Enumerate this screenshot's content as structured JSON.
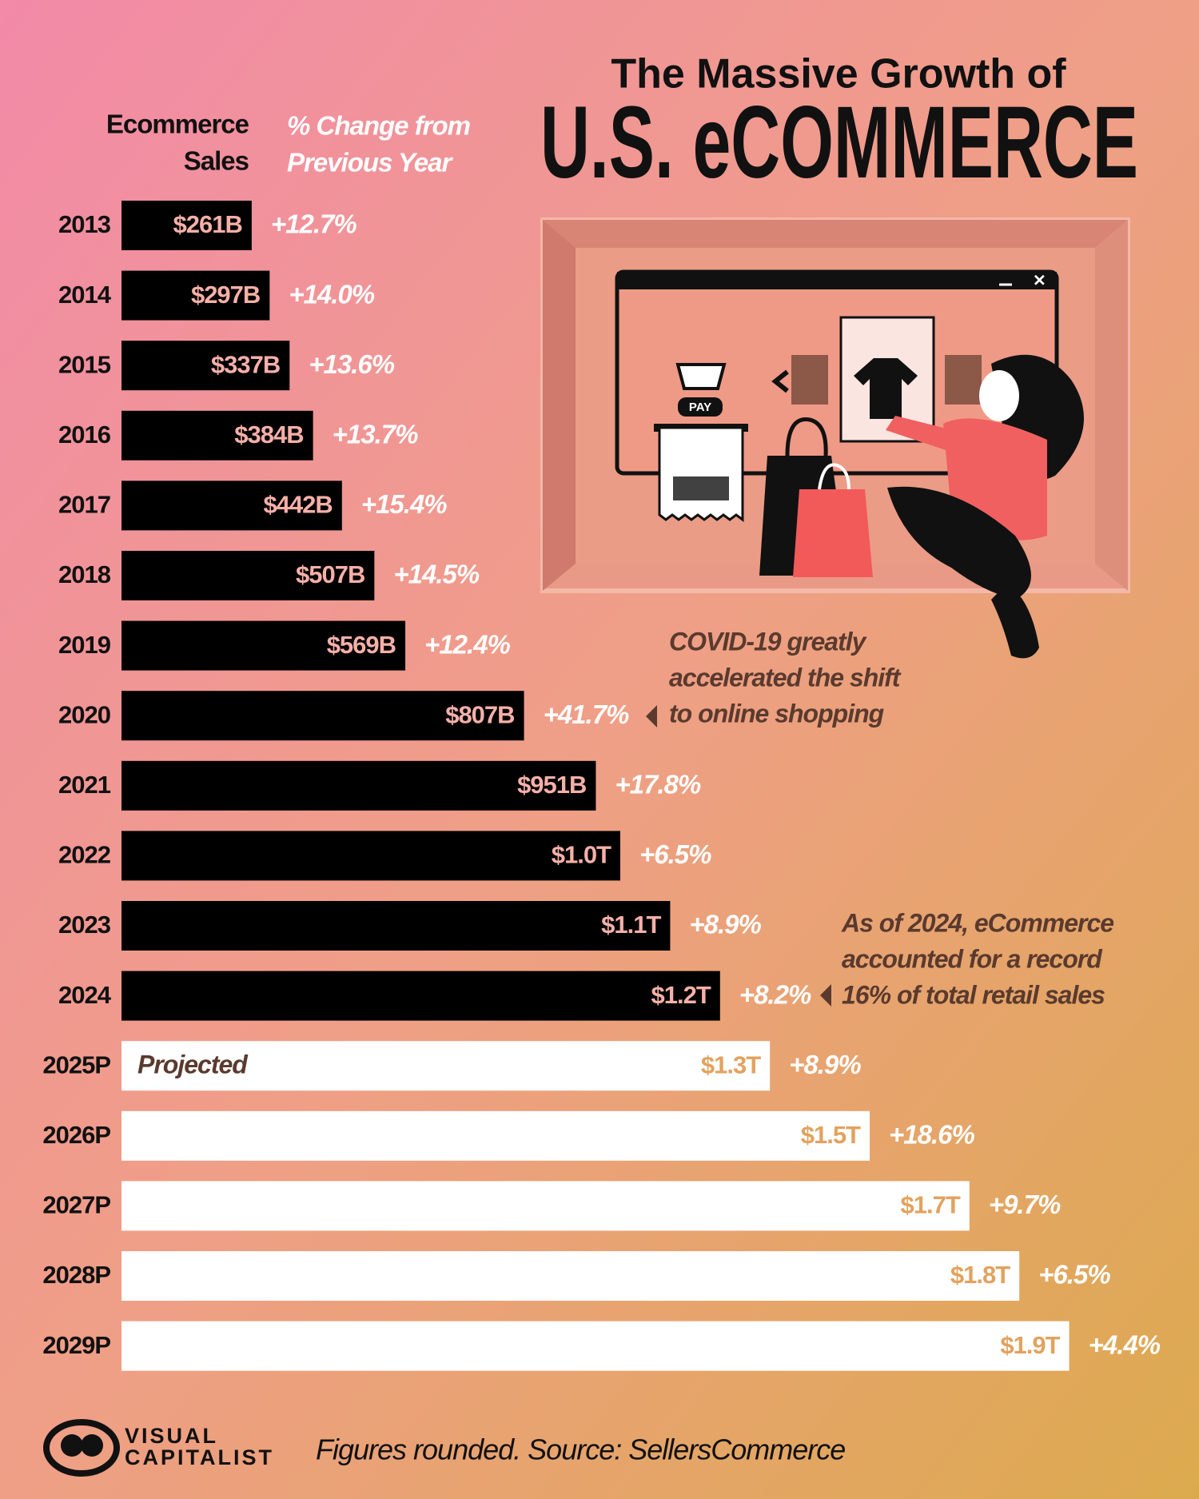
{
  "chart_data": {
    "type": "bar",
    "orientation": "horizontal",
    "title": "The Massive Growth of",
    "subtitle": "U.S. eCOMMERCE",
    "column_headers": {
      "sales": [
        "Ecommerce",
        "Sales"
      ],
      "change": [
        "% Change from",
        "Previous Year"
      ]
    },
    "categories": [
      "2013",
      "2014",
      "2015",
      "2016",
      "2017",
      "2018",
      "2019",
      "2020",
      "2021",
      "2022",
      "2023",
      "2024",
      "2025P",
      "2026P",
      "2027P",
      "2028P",
      "2029P"
    ],
    "values": [
      261,
      297,
      337,
      384,
      442,
      507,
      569,
      807,
      951,
      1000,
      1100,
      1200,
      1300,
      1500,
      1700,
      1800,
      1900
    ],
    "value_labels": [
      "$261B",
      "$297B",
      "$337B",
      "$384B",
      "$442B",
      "$507B",
      "$569B",
      "$807B",
      "$951B",
      "$1.0T",
      "$1.1T",
      "$1.2T",
      "$1.3T",
      "$1.5T",
      "$1.7T",
      "$1.8T",
      "$1.9T"
    ],
    "bar_colors": [
      "#000000",
      "#000000",
      "#000000",
      "#000000",
      "#000000",
      "#000000",
      "#000000",
      "#000000",
      "#000000",
      "#000000",
      "#000000",
      "#000000",
      "#ffffff",
      "#ffffff",
      "#ffffff",
      "#ffffff",
      "#ffffff"
    ],
    "label_colors": [
      "#f6b0a8",
      "#f6b0a8",
      "#f6b0a8",
      "#f6b0a8",
      "#f6b0a8",
      "#f6b0a8",
      "#f6b0a8",
      "#f6b0a8",
      "#f6b0a8",
      "#f6b0a8",
      "#f6b0a8",
      "#f6b0a8",
      "#e2a25e",
      "#e2a25e",
      "#e2a25e",
      "#e2a25e",
      "#e2a25e"
    ],
    "projected_label": "Projected",
    "change": {
      "values": [
        12.7,
        14.0,
        13.6,
        13.7,
        15.4,
        14.5,
        12.4,
        41.7,
        17.8,
        6.5,
        8.9,
        8.2,
        8.9,
        18.6,
        9.7,
        6.5,
        4.4
      ],
      "value_labels": [
        "+12.7%",
        "+14.0%",
        "+13.6%",
        "+13.7%",
        "+15.4%",
        "+14.5%",
        "+12.4%",
        "+41.7%",
        "+17.8%",
        "+6.5%",
        "+8.9%",
        "+8.2%",
        "+8.9%",
        "+18.6%",
        "+9.7%",
        "+6.5%",
        "+4.4%"
      ]
    },
    "xlim": [
      0,
      2000
    ],
    "annotations": [
      {
        "lines": [
          "COVID-19 greatly",
          "accelerated the shift",
          "to online shopping"
        ]
      },
      {
        "lines": [
          "As of 2024, eCommerce",
          "accounted for a record",
          "16% of total retail sales"
        ]
      }
    ],
    "footer": {
      "source": "Figures rounded. Source: SellersCommerce",
      "brand": [
        "VISUAL",
        "CAPITALIST"
      ]
    }
  }
}
